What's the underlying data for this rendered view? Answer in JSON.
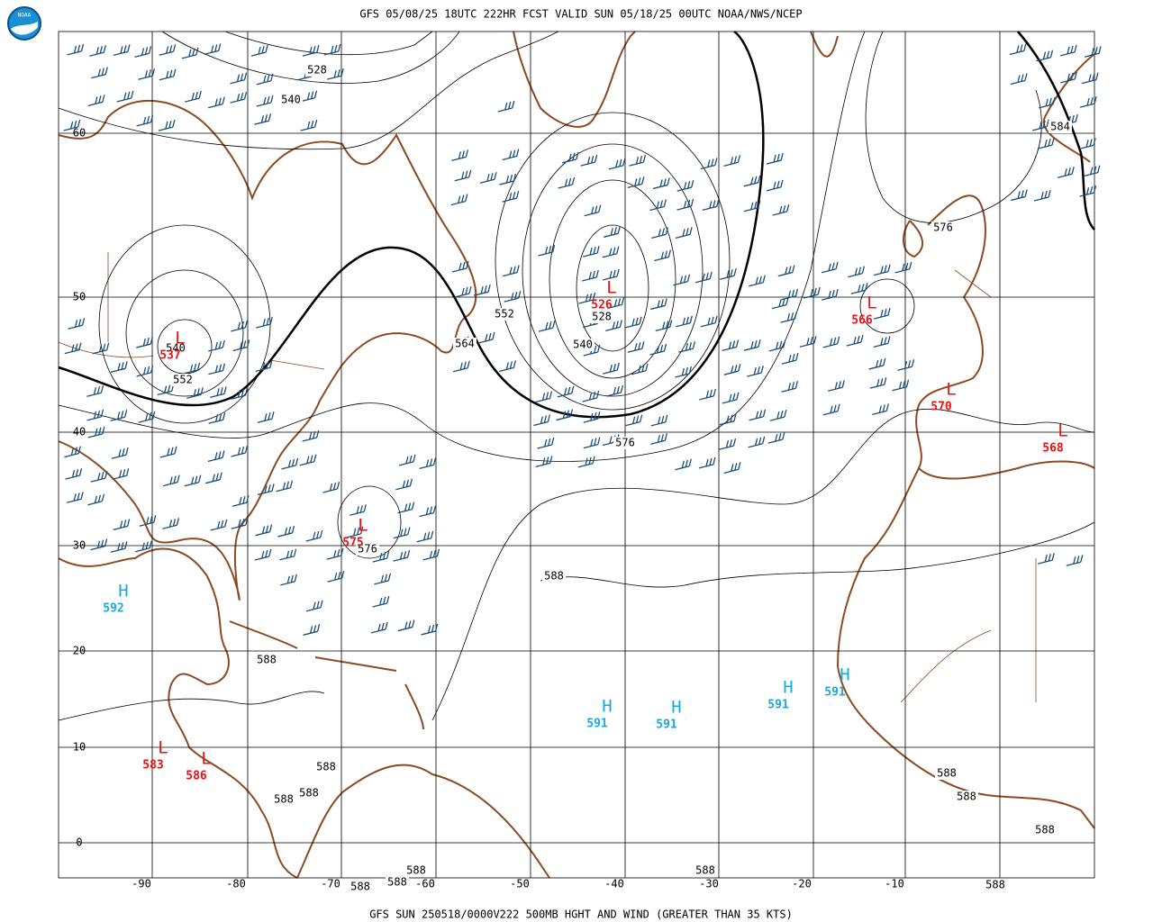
{
  "header": {
    "title": "GFS 05/08/25 18UTC 222HR FCST VALID SUN 05/18/25 00UTC NOAA/NWS/NCEP"
  },
  "footer": {
    "caption": "GFS SUN 250518/0000V222 500MB HGHT AND WIND (GREATER THAN 35 KTS)"
  },
  "logo": {
    "text": "NOAA"
  },
  "latitudes": [
    "60",
    "50",
    "40",
    "30",
    "20",
    "10",
    "0"
  ],
  "longitudes": [
    "-90",
    "-80",
    "-70",
    "-60",
    "-50",
    "-40",
    "-30",
    "-20",
    "-10"
  ],
  "contour_labels": [
    "528",
    "540",
    "584",
    "576",
    "552",
    "528",
    "564",
    "540",
    "540",
    "552",
    "576",
    "576",
    "588",
    "588",
    "588",
    "588",
    "588",
    "588",
    "588",
    "588",
    "588",
    "588",
    "588",
    "588",
    "588"
  ],
  "centers": [
    {
      "symbol": "L",
      "value": "526"
    },
    {
      "symbol": "L",
      "value": "537"
    },
    {
      "symbol": "L",
      "value": "566"
    },
    {
      "symbol": "L",
      "value": "570"
    },
    {
      "symbol": "L",
      "value": "568"
    },
    {
      "symbol": "L",
      "value": "575"
    },
    {
      "symbol": "L",
      "value": "583"
    },
    {
      "symbol": "L",
      "value": "586"
    },
    {
      "symbol": "H",
      "value": "592"
    },
    {
      "symbol": "H",
      "value": "591"
    },
    {
      "symbol": "H",
      "value": "591"
    },
    {
      "symbol": "H",
      "value": "591"
    },
    {
      "symbol": "H",
      "value": "591"
    }
  ]
}
